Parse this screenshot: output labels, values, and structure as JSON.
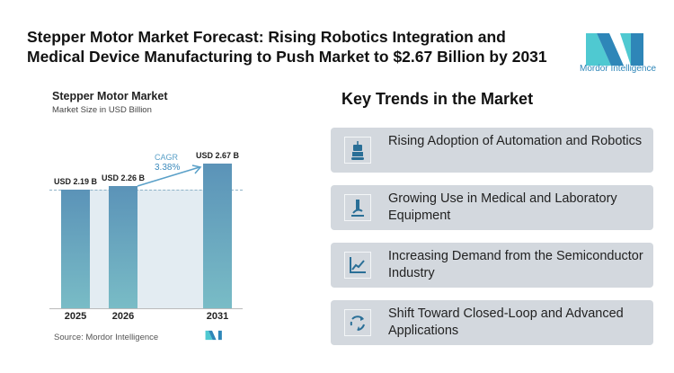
{
  "title": "Stepper Motor Market Forecast: Rising Robotics Integration and Medical Device Manufacturing to Push Market to $2.67 Billion by 2031",
  "logo": {
    "text": "Mordor Intelligence"
  },
  "chart_data": {
    "type": "bar",
    "title": "Stepper Motor Market",
    "subtitle": "Market Size in USD Billion",
    "categories": [
      "2025",
      "2026",
      "2031"
    ],
    "values": [
      2.19,
      2.26,
      2.67
    ],
    "data_labels": [
      "USD 2.19 B",
      "USD 2.26 B",
      "USD 2.67 B"
    ],
    "cagr_label": "CAGR",
    "cagr_value": "3.38%",
    "source": "Source: Mordor Intelligence",
    "colors": {
      "bar_top": "#5b93b8",
      "bar_bottom": "#79bcc6"
    }
  },
  "trends": {
    "title": "Key Trends in the Market",
    "items": [
      {
        "icon": "robot-icon",
        "text": "Rising Adoption of Automation and Robotics"
      },
      {
        "icon": "microscope-icon",
        "text": "Growing Use in Medical and Laboratory Equipment"
      },
      {
        "icon": "line-chart-icon",
        "text": "Increasing Demand from the Semiconductor Industry"
      },
      {
        "icon": "cycle-arrows-icon",
        "text": "Shift Toward Closed-Loop and Advanced Applications"
      }
    ]
  }
}
